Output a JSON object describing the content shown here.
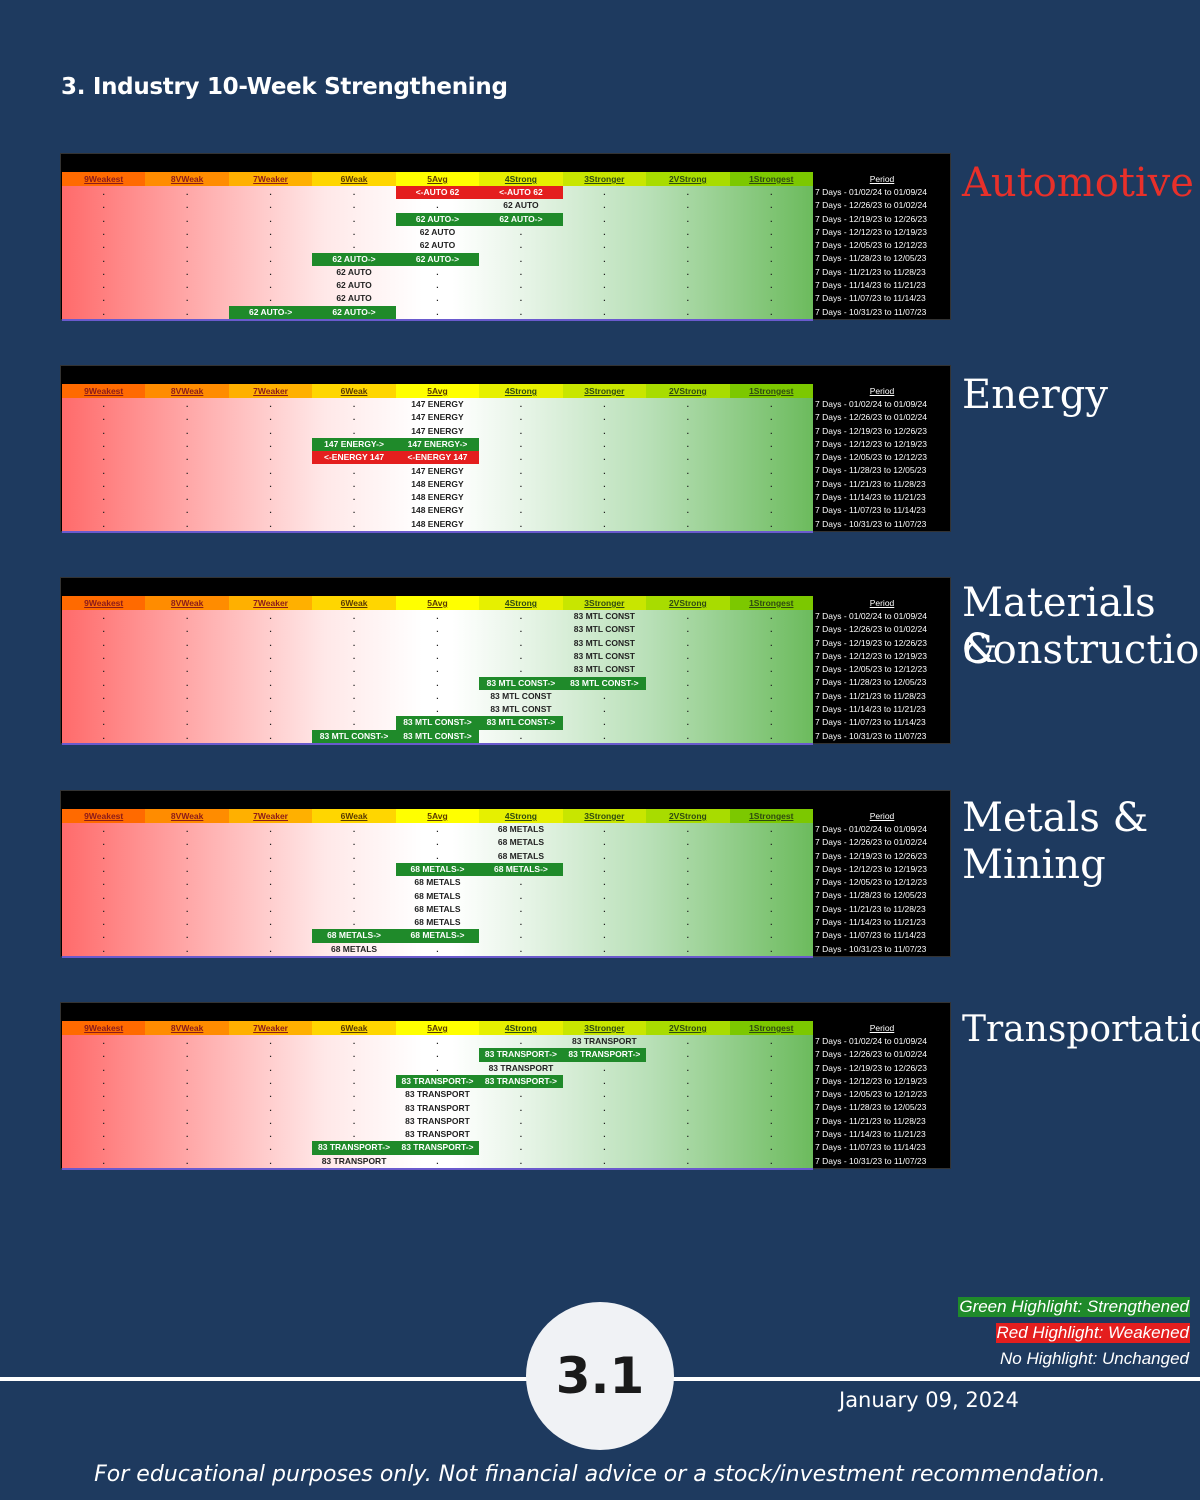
{
  "page_title": "3. Industry 10-Week Strengthening",
  "columns": [
    "9Weakest",
    "8VWeak",
    "7Weaker",
    "6Weak",
    "5Avg",
    "4Strong",
    "3Stronger",
    "2VStrong",
    "1Strongest"
  ],
  "period_header": "Period",
  "periods": [
    "7 Days - 01/02/24 to 01/09/24",
    "7 Days - 12/26/23 to 01/02/24",
    "7 Days - 12/19/23 to 12/26/23",
    "7 Days - 12/12/23 to 12/19/23",
    "7 Days - 12/05/23 to 12/12/23",
    "7 Days - 11/28/23 to 12/05/23",
    "7 Days - 11/21/23 to 11/28/23",
    "7 Days - 11/14/23 to 11/21/23",
    "7 Days - 11/07/23 to 11/14/23",
    "7 Days - 10/31/23 to 11/07/23"
  ],
  "header_colors": [
    "#ff6a00",
    "#ff8c00",
    "#ffb000",
    "#ffd600",
    "#ffff00",
    "#e6f000",
    "#c8e600",
    "#a8dc00",
    "#7cc800"
  ],
  "highlight_colors": {
    "green": "#1f8a2a",
    "red": "#e41e1e"
  },
  "sections": [
    {
      "name": "Automotive",
      "name_color": "#e8302a",
      "rows": [
        [
          {
            "c": 4,
            "t": "<-AUTO 62",
            "h": "r"
          },
          {
            "c": 5,
            "t": "<-AUTO 62",
            "h": "r"
          }
        ],
        [
          {
            "c": 5,
            "t": "62 AUTO",
            "h": ""
          }
        ],
        [
          {
            "c": 4,
            "t": "62 AUTO->",
            "h": "g"
          },
          {
            "c": 5,
            "t": "62 AUTO->",
            "h": "g"
          }
        ],
        [
          {
            "c": 4,
            "t": "62 AUTO",
            "h": ""
          }
        ],
        [
          {
            "c": 4,
            "t": "62 AUTO",
            "h": ""
          }
        ],
        [
          {
            "c": 3,
            "t": "62 AUTO->",
            "h": "g"
          },
          {
            "c": 4,
            "t": "62 AUTO->",
            "h": "g"
          }
        ],
        [
          {
            "c": 3,
            "t": "62 AUTO",
            "h": ""
          }
        ],
        [
          {
            "c": 3,
            "t": "62 AUTO",
            "h": ""
          }
        ],
        [
          {
            "c": 3,
            "t": "62 AUTO",
            "h": ""
          }
        ],
        [
          {
            "c": 2,
            "t": "62 AUTO->",
            "h": "g"
          },
          {
            "c": 3,
            "t": "62 AUTO->",
            "h": "g"
          }
        ]
      ]
    },
    {
      "name": "Energy",
      "name_color": "#ffffff",
      "rows": [
        [
          {
            "c": 4,
            "t": "147 ENERGY",
            "h": ""
          }
        ],
        [
          {
            "c": 4,
            "t": "147 ENERGY",
            "h": ""
          }
        ],
        [
          {
            "c": 4,
            "t": "147 ENERGY",
            "h": ""
          }
        ],
        [
          {
            "c": 3,
            "t": "147 ENERGY->",
            "h": "g"
          },
          {
            "c": 4,
            "t": "147 ENERGY->",
            "h": "g"
          }
        ],
        [
          {
            "c": 3,
            "t": "<-ENERGY 147",
            "h": "r"
          },
          {
            "c": 4,
            "t": "<-ENERGY 147",
            "h": "r"
          }
        ],
        [
          {
            "c": 4,
            "t": "147 ENERGY",
            "h": ""
          }
        ],
        [
          {
            "c": 4,
            "t": "148 ENERGY",
            "h": ""
          }
        ],
        [
          {
            "c": 4,
            "t": "148 ENERGY",
            "h": ""
          }
        ],
        [
          {
            "c": 4,
            "t": "148 ENERGY",
            "h": ""
          }
        ],
        [
          {
            "c": 4,
            "t": "148 ENERGY",
            "h": ""
          }
        ]
      ]
    },
    {
      "name": "Materials & Construction",
      "name_lines": [
        "Materials &",
        "Construction"
      ],
      "name_color": "#ffffff",
      "rows": [
        [
          {
            "c": 6,
            "t": "83 MTL CONST",
            "h": ""
          }
        ],
        [
          {
            "c": 6,
            "t": "83 MTL CONST",
            "h": ""
          }
        ],
        [
          {
            "c": 6,
            "t": "83 MTL CONST",
            "h": ""
          }
        ],
        [
          {
            "c": 6,
            "t": "83 MTL CONST",
            "h": ""
          }
        ],
        [
          {
            "c": 6,
            "t": "83 MTL CONST",
            "h": ""
          }
        ],
        [
          {
            "c": 5,
            "t": "83 MTL CONST->",
            "h": "g"
          },
          {
            "c": 6,
            "t": "83 MTL CONST->",
            "h": "g"
          }
        ],
        [
          {
            "c": 5,
            "t": "83 MTL CONST",
            "h": ""
          }
        ],
        [
          {
            "c": 5,
            "t": "83 MTL CONST",
            "h": ""
          }
        ],
        [
          {
            "c": 4,
            "t": "83 MTL CONST->",
            "h": "g"
          },
          {
            "c": 5,
            "t": "83 MTL CONST->",
            "h": "g"
          }
        ],
        [
          {
            "c": 3,
            "t": "83 MTL CONST->",
            "h": "g"
          },
          {
            "c": 4,
            "t": "83 MTL CONST->",
            "h": "g"
          }
        ]
      ]
    },
    {
      "name": "Metals & Mining",
      "name_lines": [
        "Metals &",
        "Mining"
      ],
      "name_color": "#ffffff",
      "rows": [
        [
          {
            "c": 5,
            "t": "68 METALS",
            "h": ""
          }
        ],
        [
          {
            "c": 5,
            "t": "68 METALS",
            "h": ""
          }
        ],
        [
          {
            "c": 5,
            "t": "68 METALS",
            "h": ""
          }
        ],
        [
          {
            "c": 4,
            "t": "68 METALS->",
            "h": "g"
          },
          {
            "c": 5,
            "t": "68 METALS->",
            "h": "g"
          }
        ],
        [
          {
            "c": 4,
            "t": "68 METALS",
            "h": ""
          }
        ],
        [
          {
            "c": 4,
            "t": "68 METALS",
            "h": ""
          }
        ],
        [
          {
            "c": 4,
            "t": "68 METALS",
            "h": ""
          }
        ],
        [
          {
            "c": 4,
            "t": "68 METALS",
            "h": ""
          }
        ],
        [
          {
            "c": 3,
            "t": "68 METALS->",
            "h": "g"
          },
          {
            "c": 4,
            "t": "68 METALS->",
            "h": "g"
          }
        ],
        [
          {
            "c": 3,
            "t": "68 METALS",
            "h": ""
          }
        ]
      ]
    },
    {
      "name": "Transportation",
      "name_color": "#ffffff",
      "rows": [
        [
          {
            "c": 6,
            "t": "83 TRANSPORT",
            "h": ""
          }
        ],
        [
          {
            "c": 5,
            "t": "83 TRANSPORT->",
            "h": "g"
          },
          {
            "c": 6,
            "t": "83 TRANSPORT->",
            "h": "g"
          }
        ],
        [
          {
            "c": 5,
            "t": "83 TRANSPORT",
            "h": ""
          }
        ],
        [
          {
            "c": 4,
            "t": "83 TRANSPORT->",
            "h": "g"
          },
          {
            "c": 5,
            "t": "83 TRANSPORT->",
            "h": "g"
          }
        ],
        [
          {
            "c": 4,
            "t": "83 TRANSPORT",
            "h": ""
          }
        ],
        [
          {
            "c": 4,
            "t": "83 TRANSPORT",
            "h": ""
          }
        ],
        [
          {
            "c": 4,
            "t": "83 TRANSPORT",
            "h": ""
          }
        ],
        [
          {
            "c": 4,
            "t": "83 TRANSPORT",
            "h": ""
          }
        ],
        [
          {
            "c": 3,
            "t": "83 TRANSPORT->",
            "h": "g"
          },
          {
            "c": 4,
            "t": "83 TRANSPORT->",
            "h": "g"
          }
        ],
        [
          {
            "c": 3,
            "t": "83 TRANSPORT",
            "h": ""
          }
        ]
      ]
    }
  ],
  "legend": {
    "green": "Green Highlight: Strengthened",
    "red": "Red Highlight: Weakened",
    "none": "No Highlight: Unchanged"
  },
  "page_number": "3.1",
  "date": "January 09, 2024",
  "disclaimer": "For educational purposes only. Not financial advice or a stock/investment recommendation."
}
